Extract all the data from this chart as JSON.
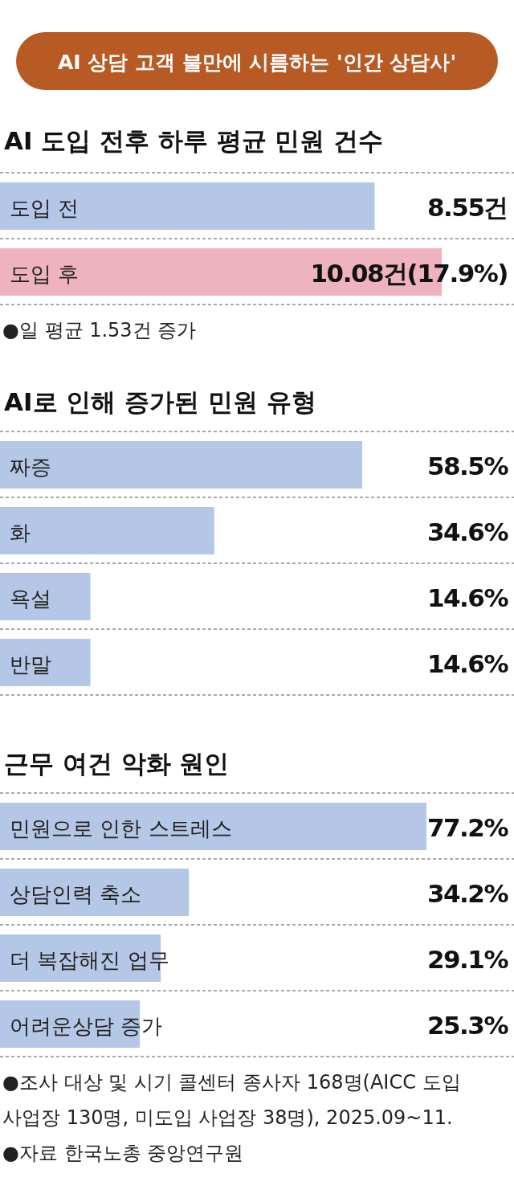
{
  "chart_data": [
    {
      "type": "bar",
      "orientation": "horizontal",
      "title": "AI 상담 고객 불만에 시름하는 '인간 상담사'",
      "subtitle": "AI 도입 전후 하루 평균 민원 건수",
      "categories": [
        "도입 전",
        "도입 후"
      ],
      "values": [
        8.55,
        10.08
      ],
      "colors": [
        "#b4c7e7",
        "#eeb3be"
      ],
      "value_labels": [
        "8.55건",
        "10.08건(17.9%)"
      ],
      "annotations": [
        "●일 평균 1.53건 증가"
      ]
    },
    {
      "type": "bar",
      "orientation": "horizontal",
      "title": "AI로 인해 증가된 민원 유형",
      "categories": [
        "짜증",
        "화",
        "욕설",
        "반말"
      ],
      "values": [
        58.5,
        34.6,
        14.6,
        14.6
      ],
      "colors": [
        "#b4c7e7",
        "#b4c7e7",
        "#b4c7e7",
        "#b4c7e7"
      ],
      "value_labels": [
        "58.5%",
        "34.6%",
        "14.6%",
        "14.6%"
      ]
    },
    {
      "type": "bar",
      "orientation": "horizontal",
      "title": "근무 여건 악화 원인",
      "categories": [
        "민원으로 인한 스트레스",
        "상담인력 축소",
        "더 복잡해진 업무",
        "어려운상담 증가"
      ],
      "values": [
        77.2,
        34.2,
        29.1,
        25.3
      ],
      "colors": [
        "#b4c7e7",
        "#b4c7e7",
        "#b4c7e7",
        "#b4c7e7"
      ],
      "value_labels": [
        "77.2%",
        "34.2%",
        "29.1%",
        "25.3%"
      ],
      "annotations": [
        "●조사 대상 및 시기  콜센터 종사자 168명(AICC 도입 사업장 130명, 미도입 사업장 38명), 2025.09~11.",
        "●자료  한국노총 중앙연구원"
      ]
    }
  ]
}
